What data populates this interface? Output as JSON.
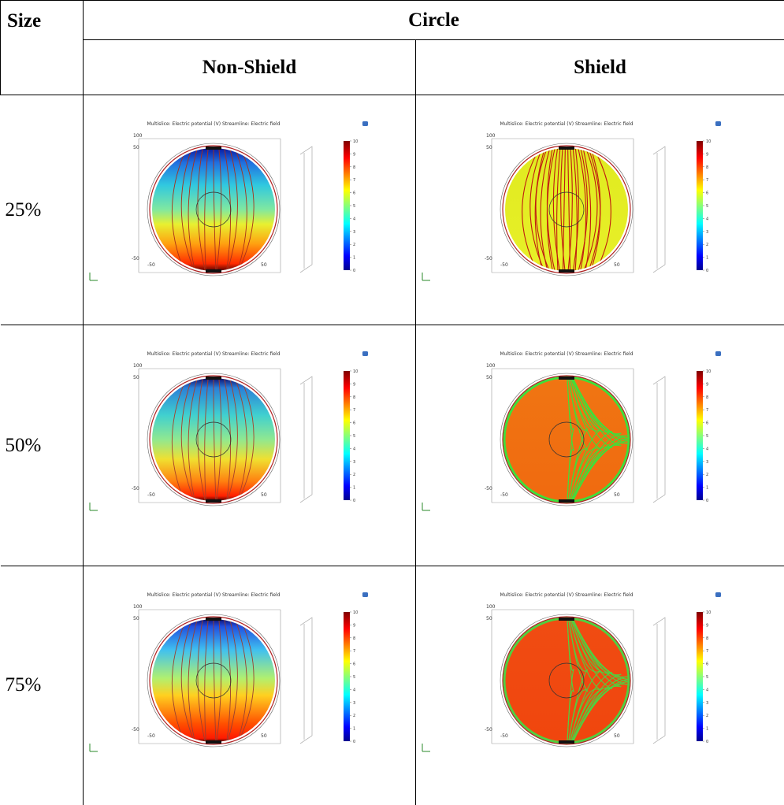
{
  "table": {
    "header": {
      "size": "Size",
      "shape": "Circle",
      "columns": [
        "Non-Shield",
        "Shield"
      ]
    },
    "rows": [
      {
        "size": "25%"
      },
      {
        "size": "50%"
      },
      {
        "size": "75%"
      }
    ]
  },
  "plot": {
    "title": "Multislice: Electric potential (V)  Streamline: Electric field",
    "colorbar_ticks": [
      0,
      1,
      2,
      3,
      4,
      5,
      6,
      7,
      8,
      9,
      10
    ],
    "axis_labels": {
      "y_top": "100",
      "y_upper": "50",
      "y_lower": "-50",
      "x_left": "-50",
      "x_right": "50"
    }
  }
}
